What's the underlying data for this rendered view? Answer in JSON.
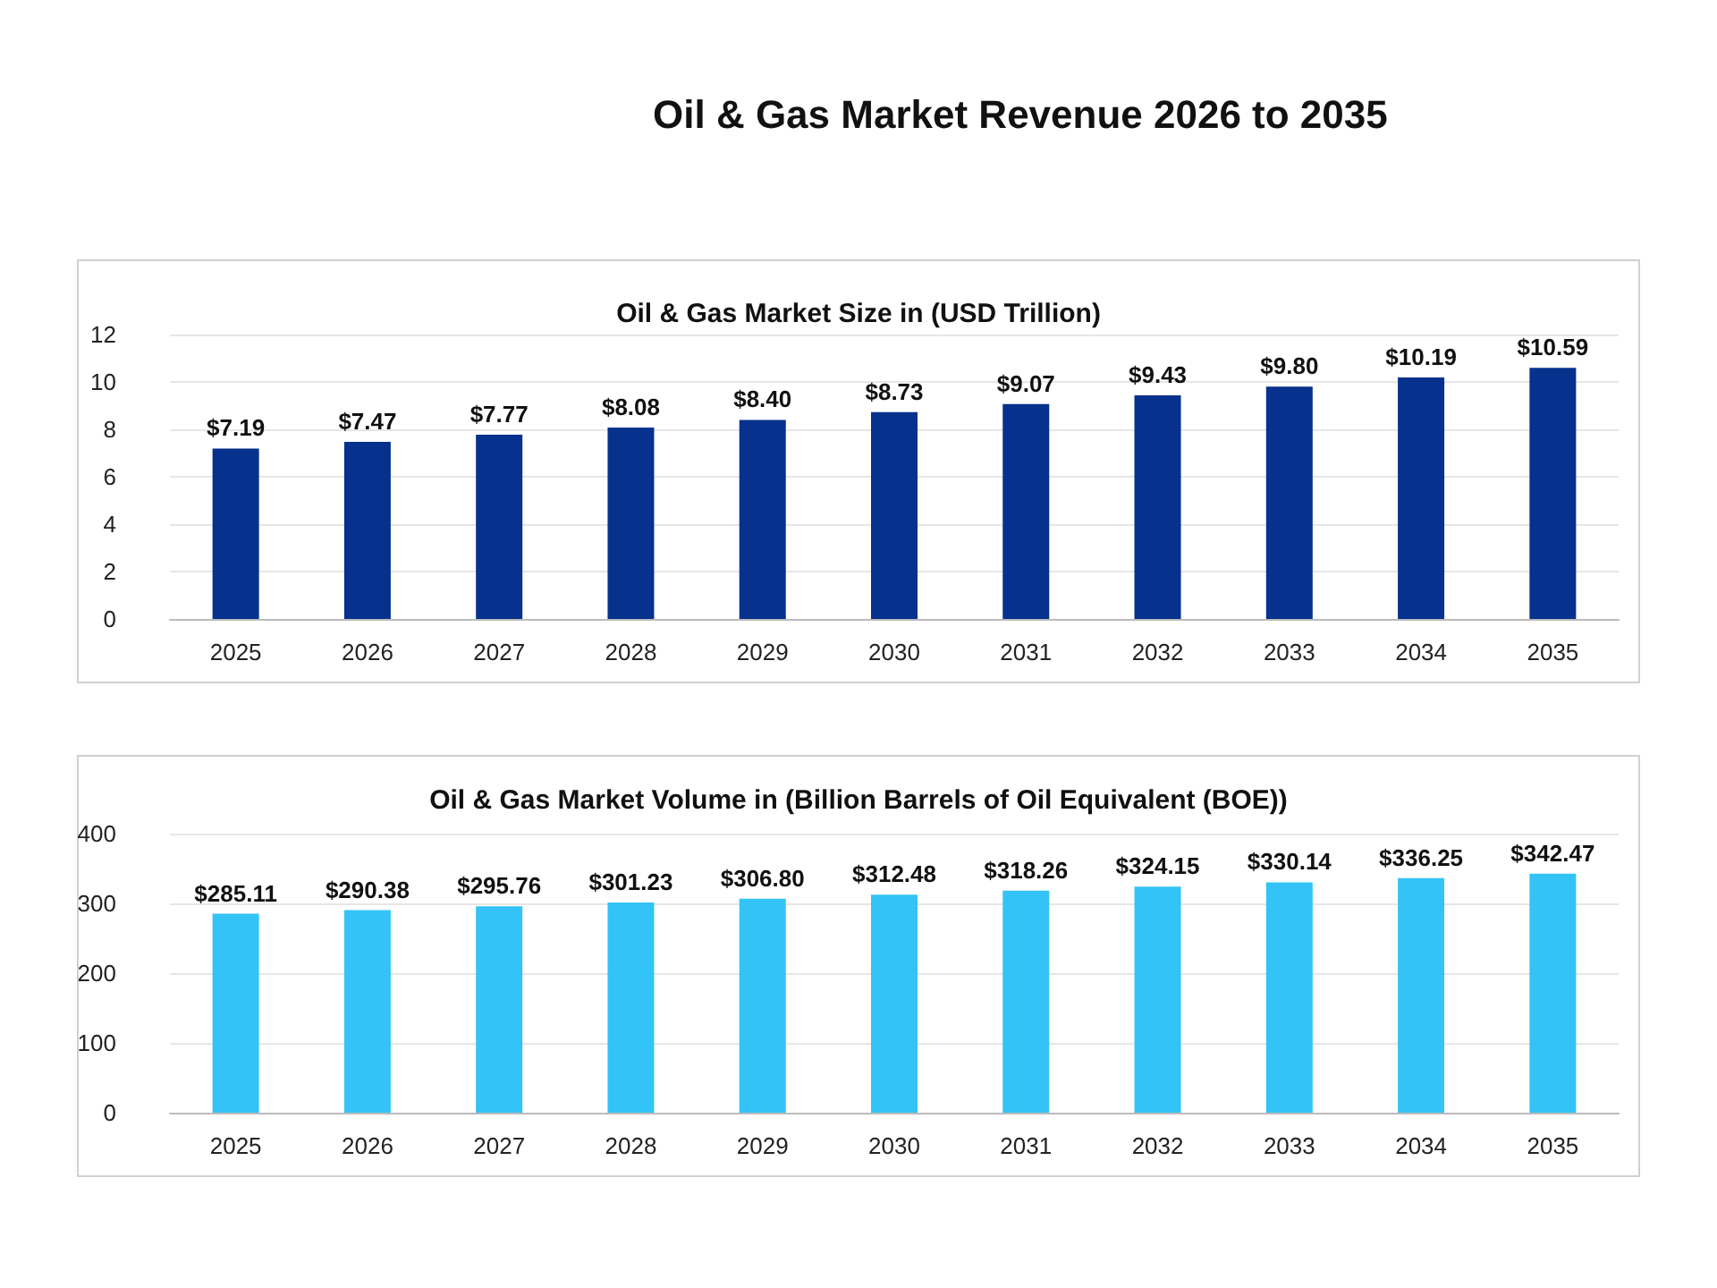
{
  "chart_data": [
    {
      "type": "bar",
      "title": "Oil & Gas Market Revenue 2026 to 2035",
      "subtitle": "Oil & Gas Market Size in (USD Trillion)",
      "categories": [
        "2025",
        "2026",
        "2027",
        "2028",
        "2029",
        "2030",
        "2031",
        "2032",
        "2033",
        "2034",
        "2035"
      ],
      "values": [
        7.19,
        7.47,
        7.77,
        8.08,
        8.4,
        8.73,
        9.07,
        9.43,
        9.8,
        10.19,
        10.59
      ],
      "value_labels": [
        "$7.19",
        "$7.47",
        "$7.77",
        "$8.08",
        "$8.40",
        "$8.73",
        "$9.07",
        "$9.43",
        "$9.80",
        "$10.19",
        "$10.59"
      ],
      "color": "#06318c",
      "ylim": [
        0,
        12
      ],
      "yticks": [
        0,
        2,
        4,
        6,
        8,
        10,
        12
      ],
      "grid": "y"
    },
    {
      "type": "bar",
      "title": "Oil & Gas Market Volume in (Billion Barrels of Oil Equivalent (BOE))",
      "categories": [
        "2025",
        "2026",
        "2027",
        "2028",
        "2029",
        "2030",
        "2031",
        "2032",
        "2033",
        "2034",
        "2035"
      ],
      "values": [
        285.11,
        290.38,
        295.76,
        301.23,
        306.8,
        312.48,
        318.26,
        324.15,
        330.14,
        336.25,
        342.47
      ],
      "value_labels": [
        "$285.11",
        "$290.38",
        "$295.76",
        "$301.23",
        "$306.80",
        "$312.48",
        "$318.26",
        "$324.15",
        "$330.14",
        "$336.25",
        "$342.47"
      ],
      "color": "#33c3f7",
      "ylim": [
        0,
        400
      ],
      "yticks": [
        0,
        100,
        200,
        300,
        400
      ],
      "grid": "y"
    }
  ]
}
